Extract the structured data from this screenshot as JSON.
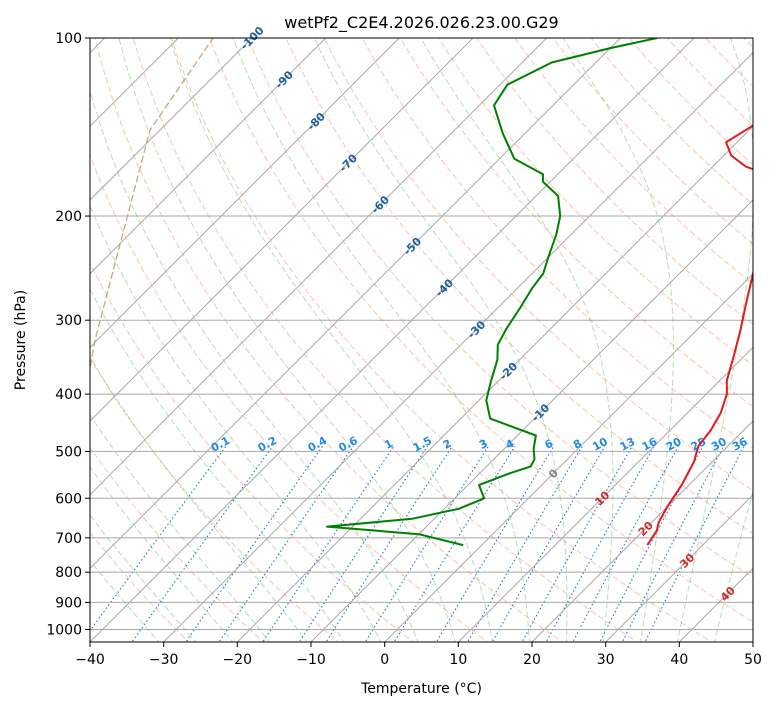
{
  "chart_data": {
    "type": "line",
    "title": "wetPf2_C2E4.2026.026.23.00.G29",
    "xlabel": "Temperature (°C)",
    "ylabel": "Pressure (hPa)",
    "xlim": [
      -40,
      50
    ],
    "ylim": [
      1050,
      100
    ],
    "y_scale": "log",
    "skew": 45,
    "grid": true,
    "x_ticks": [
      -40,
      -30,
      -20,
      -10,
      0,
      10,
      20,
      30,
      40,
      50
    ],
    "y_ticks": [
      100,
      200,
      300,
      400,
      500,
      600,
      700,
      800,
      900,
      1000
    ],
    "series": [
      {
        "name": "Temperature",
        "color": "#e41a1c",
        "x": [
          22.5,
          21.8,
          21.0,
          20.0,
          19.0,
          17.5,
          16.0,
          15.5,
          14.5,
          12.8,
          11.0,
          8.2,
          5.8,
          3.0,
          0.5,
          -2.3,
          -4.0,
          -6.5,
          -9.0,
          -11.5,
          -15.5,
          -19.0,
          -21.5,
          -20.0,
          -18.0,
          -13.0,
          -11.5,
          -12.0,
          -13.0,
          -14.5
        ],
        "p": [
          720,
          680,
          660,
          620,
          570,
          520,
          490,
          460,
          430,
          400,
          380,
          340,
          310,
          280,
          255,
          230,
          210,
          195,
          180,
          170,
          165,
          158,
          150,
          140,
          130,
          120,
          114,
          108,
          103,
          100
        ]
      },
      {
        "name": "Dewpoint",
        "color": "#008000",
        "x": [
          -2.5,
          -10.0,
          -23.5,
          -13.0,
          -8.0,
          -6.0,
          -8.5,
          -6.0,
          -4.0,
          -4.5,
          -6.0,
          -7.5,
          -16.0,
          -19.0,
          -21.0,
          -23.0,
          -25.0,
          -26.0,
          -27.0,
          -28.0,
          -28.5,
          -30.0,
          -32.0,
          -34.0,
          -37.0,
          -41.0,
          -42.0,
          -48.0,
          -53.0,
          -58.0,
          -59.0,
          -56.0,
          -50.0,
          -45.0
        ],
        "p": [
          720,
          690,
          670,
          650,
          625,
          600,
          570,
          545,
          530,
          515,
          495,
          470,
          440,
          410,
          380,
          350,
          330,
          310,
          285,
          265,
          250,
          235,
          215,
          200,
          185,
          175,
          170,
          160,
          145,
          130,
          120,
          110,
          104,
          100
        ]
      }
    ],
    "mixing_ratio_labels": [
      "0.1",
      "0.2",
      "0.4",
      "0.6",
      "1",
      "1.5",
      "2",
      "3",
      "4",
      "6",
      "8",
      "10",
      "13",
      "16",
      "20",
      "25",
      "30",
      "36"
    ],
    "isotherm_labels": [
      "-100",
      "-90",
      "-80",
      "-70",
      "-60",
      "-50",
      "-40",
      "-30",
      "-20",
      "-10"
    ],
    "warm_isotherm_labels": [
      "0",
      "10",
      "20",
      "30",
      "40"
    ]
  }
}
